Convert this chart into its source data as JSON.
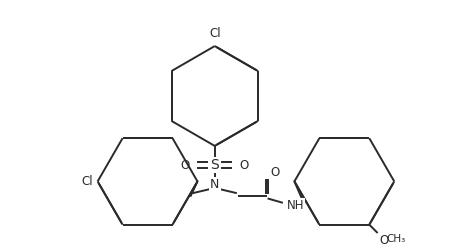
{
  "bg_color": "#ffffff",
  "line_color": "#2a2a2a",
  "line_width": 1.4,
  "dl": 0.012,
  "figsize": [
    4.65,
    2.48
  ],
  "dpi": 100,
  "xlim": [
    0,
    4.65
  ],
  "ylim": [
    0,
    2.48
  ]
}
